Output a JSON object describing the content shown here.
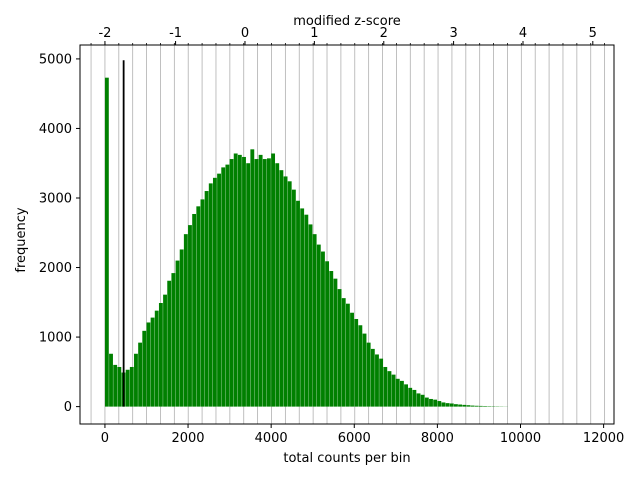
{
  "chart_data": {
    "type": "bar",
    "title": "",
    "xlabel": "total counts per bin",
    "ylabel": "frequency",
    "top_xlabel": "modified z-score",
    "xlim": [
      -600,
      12250
    ],
    "ylim": [
      -250,
      5200
    ],
    "x_ticks": [
      0,
      2000,
      4000,
      6000,
      8000,
      10000,
      12000
    ],
    "y_ticks": [
      0,
      1000,
      2000,
      3000,
      4000,
      5000
    ],
    "top_ticks": [
      {
        "label": "-2",
        "value": 0
      },
      {
        "label": "-1",
        "value": 1700
      },
      {
        "label": "0",
        "value": 3370
      },
      {
        "label": "1",
        "value": 5040
      },
      {
        "label": "2",
        "value": 6710
      },
      {
        "label": "3",
        "value": 8390
      },
      {
        "label": "4",
        "value": 10060
      },
      {
        "label": "5",
        "value": 11740
      }
    ],
    "top_minor_step": 334,
    "grid": "vertical lines at modified z-score minor ticks",
    "bar_color": "#008000",
    "threshold_line": {
      "x": 450,
      "y_top": 4980,
      "color": "#000000"
    },
    "bin_width": 100,
    "bins": [
      {
        "x": 0,
        "y": 4730
      },
      {
        "x": 100,
        "y": 760
      },
      {
        "x": 200,
        "y": 600
      },
      {
        "x": 300,
        "y": 570
      },
      {
        "x": 400,
        "y": 490
      },
      {
        "x": 500,
        "y": 530
      },
      {
        "x": 600,
        "y": 570
      },
      {
        "x": 700,
        "y": 760
      },
      {
        "x": 800,
        "y": 920
      },
      {
        "x": 900,
        "y": 1090
      },
      {
        "x": 1000,
        "y": 1210
      },
      {
        "x": 1100,
        "y": 1280
      },
      {
        "x": 1200,
        "y": 1380
      },
      {
        "x": 1300,
        "y": 1490
      },
      {
        "x": 1400,
        "y": 1610
      },
      {
        "x": 1500,
        "y": 1810
      },
      {
        "x": 1600,
        "y": 1920
      },
      {
        "x": 1700,
        "y": 2100
      },
      {
        "x": 1800,
        "y": 2260
      },
      {
        "x": 1900,
        "y": 2480
      },
      {
        "x": 2000,
        "y": 2610
      },
      {
        "x": 2100,
        "y": 2770
      },
      {
        "x": 2200,
        "y": 2880
      },
      {
        "x": 2300,
        "y": 2980
      },
      {
        "x": 2400,
        "y": 3100
      },
      {
        "x": 2500,
        "y": 3210
      },
      {
        "x": 2600,
        "y": 3290
      },
      {
        "x": 2700,
        "y": 3350
      },
      {
        "x": 2800,
        "y": 3440
      },
      {
        "x": 2900,
        "y": 3480
      },
      {
        "x": 3000,
        "y": 3560
      },
      {
        "x": 3100,
        "y": 3640
      },
      {
        "x": 3200,
        "y": 3620
      },
      {
        "x": 3300,
        "y": 3590
      },
      {
        "x": 3400,
        "y": 3500
      },
      {
        "x": 3500,
        "y": 3700
      },
      {
        "x": 3600,
        "y": 3560
      },
      {
        "x": 3700,
        "y": 3620
      },
      {
        "x": 3800,
        "y": 3560
      },
      {
        "x": 3900,
        "y": 3570
      },
      {
        "x": 4000,
        "y": 3640
      },
      {
        "x": 4100,
        "y": 3500
      },
      {
        "x": 4200,
        "y": 3400
      },
      {
        "x": 4300,
        "y": 3310
      },
      {
        "x": 4400,
        "y": 3240
      },
      {
        "x": 4500,
        "y": 3120
      },
      {
        "x": 4600,
        "y": 2960
      },
      {
        "x": 4700,
        "y": 2850
      },
      {
        "x": 4800,
        "y": 2760
      },
      {
        "x": 4900,
        "y": 2620
      },
      {
        "x": 5000,
        "y": 2480
      },
      {
        "x": 5100,
        "y": 2330
      },
      {
        "x": 5200,
        "y": 2230
      },
      {
        "x": 5300,
        "y": 2090
      },
      {
        "x": 5400,
        "y": 1950
      },
      {
        "x": 5500,
        "y": 1840
      },
      {
        "x": 5600,
        "y": 1690
      },
      {
        "x": 5700,
        "y": 1560
      },
      {
        "x": 5800,
        "y": 1480
      },
      {
        "x": 5900,
        "y": 1350
      },
      {
        "x": 6000,
        "y": 1260
      },
      {
        "x": 6100,
        "y": 1170
      },
      {
        "x": 6200,
        "y": 1050
      },
      {
        "x": 6300,
        "y": 920
      },
      {
        "x": 6400,
        "y": 830
      },
      {
        "x": 6500,
        "y": 750
      },
      {
        "x": 6600,
        "y": 690
      },
      {
        "x": 6700,
        "y": 570
      },
      {
        "x": 6800,
        "y": 510
      },
      {
        "x": 6900,
        "y": 460
      },
      {
        "x": 7000,
        "y": 400
      },
      {
        "x": 7100,
        "y": 370
      },
      {
        "x": 7200,
        "y": 320
      },
      {
        "x": 7300,
        "y": 270
      },
      {
        "x": 7400,
        "y": 240
      },
      {
        "x": 7500,
        "y": 190
      },
      {
        "x": 7600,
        "y": 170
      },
      {
        "x": 7700,
        "y": 130
      },
      {
        "x": 7800,
        "y": 110
      },
      {
        "x": 7900,
        "y": 100
      },
      {
        "x": 8000,
        "y": 80
      },
      {
        "x": 8100,
        "y": 60
      },
      {
        "x": 8200,
        "y": 50
      },
      {
        "x": 8300,
        "y": 45
      },
      {
        "x": 8400,
        "y": 35
      },
      {
        "x": 8500,
        "y": 30
      },
      {
        "x": 8600,
        "y": 25
      },
      {
        "x": 8700,
        "y": 20
      },
      {
        "x": 8800,
        "y": 15
      },
      {
        "x": 8900,
        "y": 12
      },
      {
        "x": 9000,
        "y": 10
      },
      {
        "x": 9100,
        "y": 8
      },
      {
        "x": 9200,
        "y": 6
      },
      {
        "x": 9300,
        "y": 5
      },
      {
        "x": 9400,
        "y": 4
      },
      {
        "x": 9500,
        "y": 3
      },
      {
        "x": 9600,
        "y": 2
      }
    ]
  }
}
